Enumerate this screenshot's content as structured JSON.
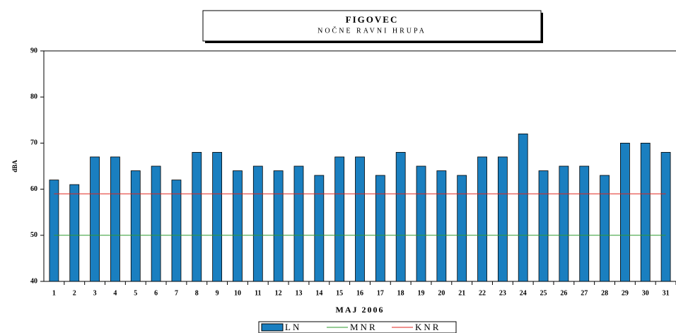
{
  "chart_data": {
    "type": "bar",
    "title": "FIGOVEC",
    "subtitle": "NOČNE RAVNI HRUPA",
    "x_label": "MAJ 2006",
    "y_label": "dBA",
    "categories": [
      "1",
      "2",
      "3",
      "4",
      "5",
      "6",
      "7",
      "8",
      "9",
      "10",
      "11",
      "12",
      "13",
      "14",
      "15",
      "16",
      "17",
      "18",
      "19",
      "20",
      "21",
      "22",
      "23",
      "24",
      "25",
      "26",
      "27",
      "28",
      "29",
      "30",
      "31"
    ],
    "series": [
      {
        "name": "LN",
        "type": "bar",
        "color": "#1a7fc0",
        "values": [
          62,
          61,
          67,
          67,
          64,
          65,
          62,
          68,
          68,
          64,
          65,
          64,
          65,
          63,
          67,
          67,
          63,
          68,
          65,
          64,
          63,
          67,
          67,
          72,
          64,
          65,
          65,
          63,
          70,
          70,
          68
        ]
      },
      {
        "name": "MNR",
        "type": "line",
        "color": "#2e9a2e",
        "values": [
          50,
          50,
          50,
          50,
          50,
          50,
          50,
          50,
          50,
          50,
          50,
          50,
          50,
          50,
          50,
          50,
          50,
          50,
          50,
          50,
          50,
          50,
          50,
          50,
          50,
          50,
          50,
          50,
          50,
          50,
          50
        ]
      },
      {
        "name": "KNR",
        "type": "line",
        "color": "#e0261f",
        "values": [
          59,
          59,
          59,
          59,
          59,
          59,
          59,
          59,
          59,
          59,
          59,
          59,
          59,
          59,
          59,
          59,
          59,
          59,
          59,
          59,
          59,
          59,
          59,
          59,
          59,
          59,
          59,
          59,
          59,
          59,
          59
        ]
      }
    ],
    "ylim": [
      40,
      90
    ],
    "yticks": [
      40,
      50,
      60,
      70,
      80,
      90
    ]
  }
}
